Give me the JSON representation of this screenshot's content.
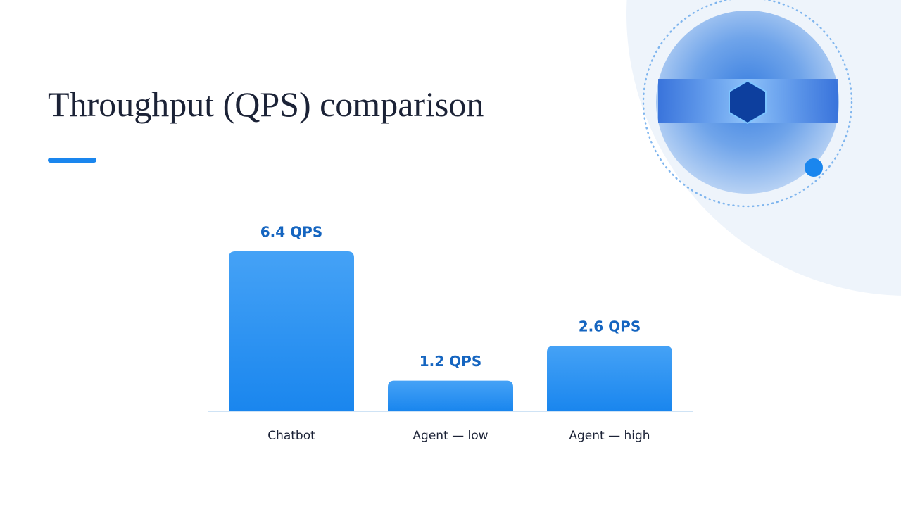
{
  "chart_data": {
    "type": "bar",
    "title": "Throughput (QPS) comparison",
    "categories": [
      "Chatbot",
      "Agent — low",
      "Agent — high"
    ],
    "values": [
      6.4,
      1.2,
      2.6
    ],
    "value_labels": [
      "6.4 QPS",
      "1.2 QPS",
      "2.6 QPS"
    ],
    "color": "#1e88ef"
  }
}
